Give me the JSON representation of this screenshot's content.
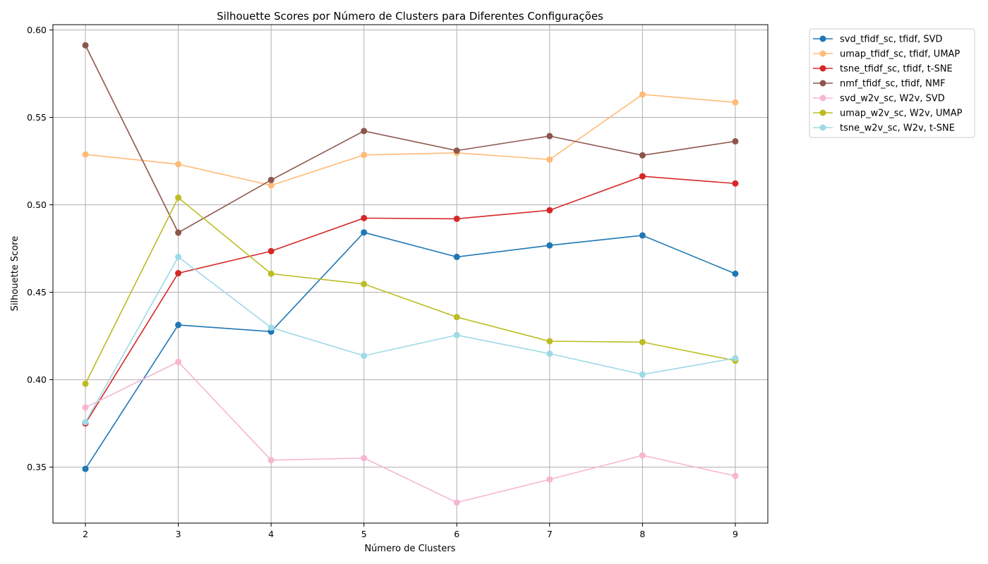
{
  "chart_data": {
    "type": "line",
    "title": "Silhouette Scores por Número de Clusters para Diferentes Configurações",
    "xlabel": "Número de Clusters",
    "ylabel": "Silhouette Score",
    "x": [
      2,
      3,
      4,
      5,
      6,
      7,
      8,
      9
    ],
    "x_ticks": [
      "2",
      "3",
      "4",
      "5",
      "6",
      "7",
      "8",
      "9"
    ],
    "xlim": [
      1.65,
      9.35
    ],
    "ylim": [
      0.318,
      0.603
    ],
    "y_ticks": [
      "0.35",
      "0.40",
      "0.45",
      "0.50",
      "0.55",
      "0.60"
    ],
    "grid": true,
    "legend_position": "outside-top-right",
    "series": [
      {
        "name": "svd_tfidf_sc, tfidf, SVD",
        "color": "#1f77b4",
        "values": [
          0.349,
          0.4313,
          0.4275,
          0.4842,
          0.4702,
          0.4768,
          0.4825,
          0.4606
        ]
      },
      {
        "name": "umap_tfidf_sc, tfidf, UMAP",
        "color": "#ffbb78",
        "values": [
          0.5288,
          0.5232,
          0.5111,
          0.5285,
          0.5297,
          0.5259,
          0.5631,
          0.5586
        ]
      },
      {
        "name": "tsne_tfidf_sc, tfidf, t-SNE",
        "color": "#d62728",
        "values": [
          0.375,
          0.4609,
          0.4735,
          0.4924,
          0.492,
          0.4969,
          0.5163,
          0.5122
        ]
      },
      {
        "name": "nmf_tfidf_sc, tfidf, NMF",
        "color": "#8c564b",
        "values": [
          0.5912,
          0.4841,
          0.5142,
          0.5422,
          0.531,
          0.5393,
          0.5283,
          0.5363
        ]
      },
      {
        "name": "svd_w2v_sc, W2v, SVD",
        "color": "#f7b6d2",
        "values": [
          0.3841,
          0.4102,
          0.354,
          0.3552,
          0.3298,
          0.343,
          0.3567,
          0.345
        ]
      },
      {
        "name": "umap_w2v_sc, W2v, UMAP",
        "color": "#bcbd22",
        "values": [
          0.3977,
          0.5041,
          0.4606,
          0.4547,
          0.4358,
          0.422,
          0.4215,
          0.4109
        ]
      },
      {
        "name": "tsne_w2v_sc, W2v, t-SNE",
        "color": "#9edae5",
        "values": [
          0.3757,
          0.4702,
          0.4298,
          0.4137,
          0.4255,
          0.4149,
          0.403,
          0.4123
        ]
      }
    ]
  }
}
